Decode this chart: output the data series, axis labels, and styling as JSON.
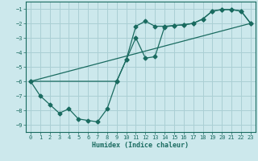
{
  "xlabel": "Humidex (Indice chaleur)",
  "bg_color": "#cce8ec",
  "grid_color": "#aacfd4",
  "line_color": "#1a6b60",
  "xlim": [
    -0.5,
    23.5
  ],
  "ylim": [
    -9.5,
    -0.5
  ],
  "yticks": [
    -1,
    -2,
    -3,
    -4,
    -5,
    -6,
    -7,
    -8,
    -9
  ],
  "xticks": [
    0,
    1,
    2,
    3,
    4,
    5,
    6,
    7,
    8,
    9,
    10,
    11,
    12,
    13,
    14,
    15,
    16,
    17,
    18,
    19,
    20,
    21,
    22,
    23
  ],
  "line1_x": [
    0,
    1,
    2,
    3,
    4,
    5,
    6,
    7,
    8,
    9,
    10,
    11,
    12,
    13,
    14,
    15,
    16,
    17,
    18,
    19,
    20,
    21,
    22,
    23
  ],
  "line1_y": [
    -6.0,
    -7.0,
    -7.6,
    -8.2,
    -7.9,
    -8.6,
    -8.7,
    -8.8,
    -7.9,
    -6.0,
    -4.5,
    -2.2,
    -1.85,
    -2.2,
    -2.2,
    -2.15,
    -2.1,
    -2.0,
    -1.7,
    -1.15,
    -1.05,
    -1.05,
    -1.15,
    -2.0
  ],
  "line2_x": [
    0,
    9,
    10,
    11,
    12,
    13,
    14,
    15,
    16,
    17,
    18,
    19,
    20,
    21,
    22,
    23
  ],
  "line2_y": [
    -6.0,
    -6.0,
    -4.5,
    -3.0,
    -4.4,
    -4.3,
    -2.25,
    -2.15,
    -2.1,
    -2.0,
    -1.7,
    -1.15,
    -1.05,
    -1.05,
    -1.15,
    -2.0
  ],
  "line3_x": [
    0,
    23
  ],
  "line3_y": [
    -6.0,
    -2.0
  ]
}
